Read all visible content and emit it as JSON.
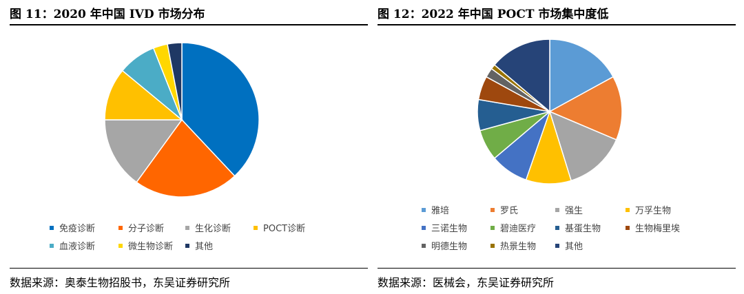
{
  "chart_data": [
    {
      "type": "pie",
      "title": "图 11：2020 年中国 IVD 市场分布",
      "source": "数据来源：奥泰生物招股书，东吴证券研究所",
      "categories": [
        "免疫诊断",
        "分子诊断",
        "生化诊断",
        "POCT诊断",
        "血液诊断",
        "微生物诊断",
        "其他"
      ],
      "values": [
        38,
        22,
        15,
        11,
        8,
        3,
        3
      ],
      "colors": [
        "#0070C0",
        "#FF6600",
        "#A6A6A6",
        "#FFC000",
        "#4BACC6",
        "#FFD700",
        "#1F3864"
      ],
      "legend": "bottom"
    },
    {
      "type": "pie",
      "title": "图 12：2022 年中国 POCT 市场集中度低",
      "source": "数据来源：医械会，东吴证券研究所",
      "categories": [
        "雅培",
        "罗氏",
        "强生",
        "万孚生物",
        "三诺生物",
        "碧迪医疗",
        "基蛋生物",
        "生物梅里埃",
        "明德生物",
        "热景生物",
        "其他"
      ],
      "values": [
        16,
        13.5,
        13,
        9.5,
        8,
        6.5,
        6.5,
        5,
        2,
        1,
        13
      ],
      "colors": [
        "#5B9BD5",
        "#ED7D31",
        "#A5A5A5",
        "#FFC000",
        "#4472C4",
        "#70AD47",
        "#255E91",
        "#9E480E",
        "#636363",
        "#997300",
        "#264478"
      ],
      "legend": "bottom"
    }
  ]
}
